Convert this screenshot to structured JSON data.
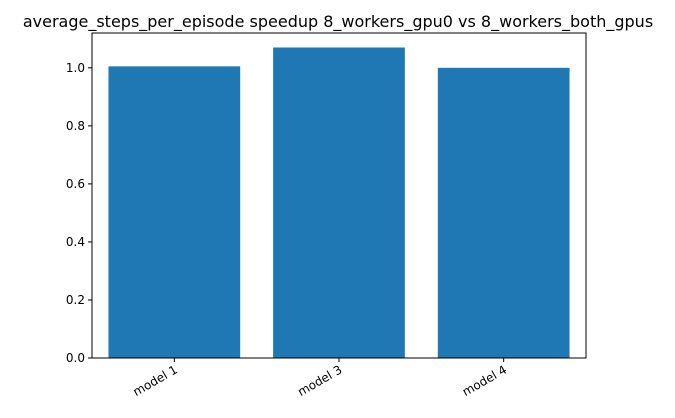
{
  "chart_data": {
    "type": "bar",
    "title": "average_steps_per_episode speedup 8_workers_gpu0 vs 8_workers_both_gpus",
    "xlabel": "",
    "ylabel": "",
    "categories": [
      "model 1",
      "model 3",
      "model 4"
    ],
    "values": [
      1.005,
      1.07,
      1.0
    ],
    "ylim": [
      0,
      1.12
    ],
    "yticks": [
      0.0,
      0.2,
      0.4,
      0.6,
      0.8,
      1.0
    ],
    "ytick_labels": [
      "0.0",
      "0.2",
      "0.4",
      "0.6",
      "0.8",
      "1.0"
    ],
    "bar_color": "#1f77b4",
    "grid": false,
    "legend": "none",
    "xtick_rotation_deg": 30
  }
}
